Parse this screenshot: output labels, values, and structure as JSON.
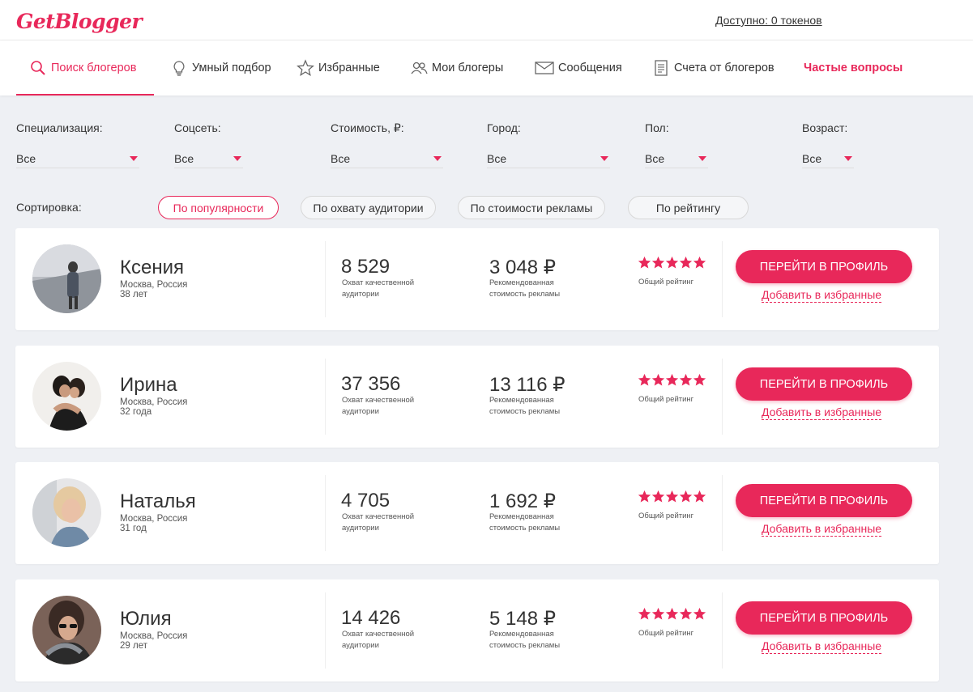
{
  "header": {
    "logo": "GetBlogger",
    "tokens_link": "Доступно: 0 токенов"
  },
  "nav": [
    {
      "label": "Поиск блогеров",
      "icon": "search-icon"
    },
    {
      "label": "Умный подбор",
      "icon": "lightbulb-icon"
    },
    {
      "label": "Избранные",
      "icon": "star-icon"
    },
    {
      "label": "Мои блогеры",
      "icon": "users-icon"
    },
    {
      "label": "Сообщения",
      "icon": "envelope-icon"
    },
    {
      "label": "Счета от блогеров",
      "icon": "document-icon"
    },
    {
      "label": "Частые вопросы",
      "icon": ""
    }
  ],
  "filters": [
    {
      "label": "Специализация:",
      "value": "Все"
    },
    {
      "label": "Соцсеть:",
      "value": "Все"
    },
    {
      "label": "Стоимость, ₽:",
      "value": "Все"
    },
    {
      "label": "Город:",
      "value": "Все"
    },
    {
      "label": "Пол:",
      "value": "Все"
    },
    {
      "label": "Возраст:",
      "value": "Все"
    }
  ],
  "sort": {
    "label": "Сортировка:",
    "options": [
      "По популярности",
      "По охвату аудитории",
      "По стоимости рекламы",
      "По рейтингу"
    ],
    "active": "По популярности"
  },
  "bloggers": [
    {
      "name": "Ксения",
      "city": "Москва, Россия",
      "age": "38 лет",
      "reach": "8 529",
      "price": "3 048 ₽"
    },
    {
      "name": "Ирина",
      "city": "Москва, Россия",
      "age": "32 года",
      "reach": "37 356",
      "price": "13 116 ₽"
    },
    {
      "name": "Наталья",
      "city": "Москва, Россия",
      "age": "31 год",
      "reach": "4 705",
      "price": "1 692 ₽"
    },
    {
      "name": "Юлия",
      "city": "Москва, Россия",
      "age": "29 лет",
      "reach": "14 426",
      "price": "5 148 ₽"
    }
  ],
  "card_labels": {
    "reach_line1": "Охват качественной",
    "reach_line2": "аудитории",
    "price_line1": "Рекомендованная",
    "price_line2": "стоимость рекламы",
    "rating": "Общий рейтинг",
    "profile_button": "ПЕРЕЙТИ В ПРОФИЛЬ",
    "favorite_link": "Добавить в избранные"
  },
  "rating_stars": 5,
  "colors": {
    "accent": "#e8285a",
    "background": "#eef0f4"
  }
}
